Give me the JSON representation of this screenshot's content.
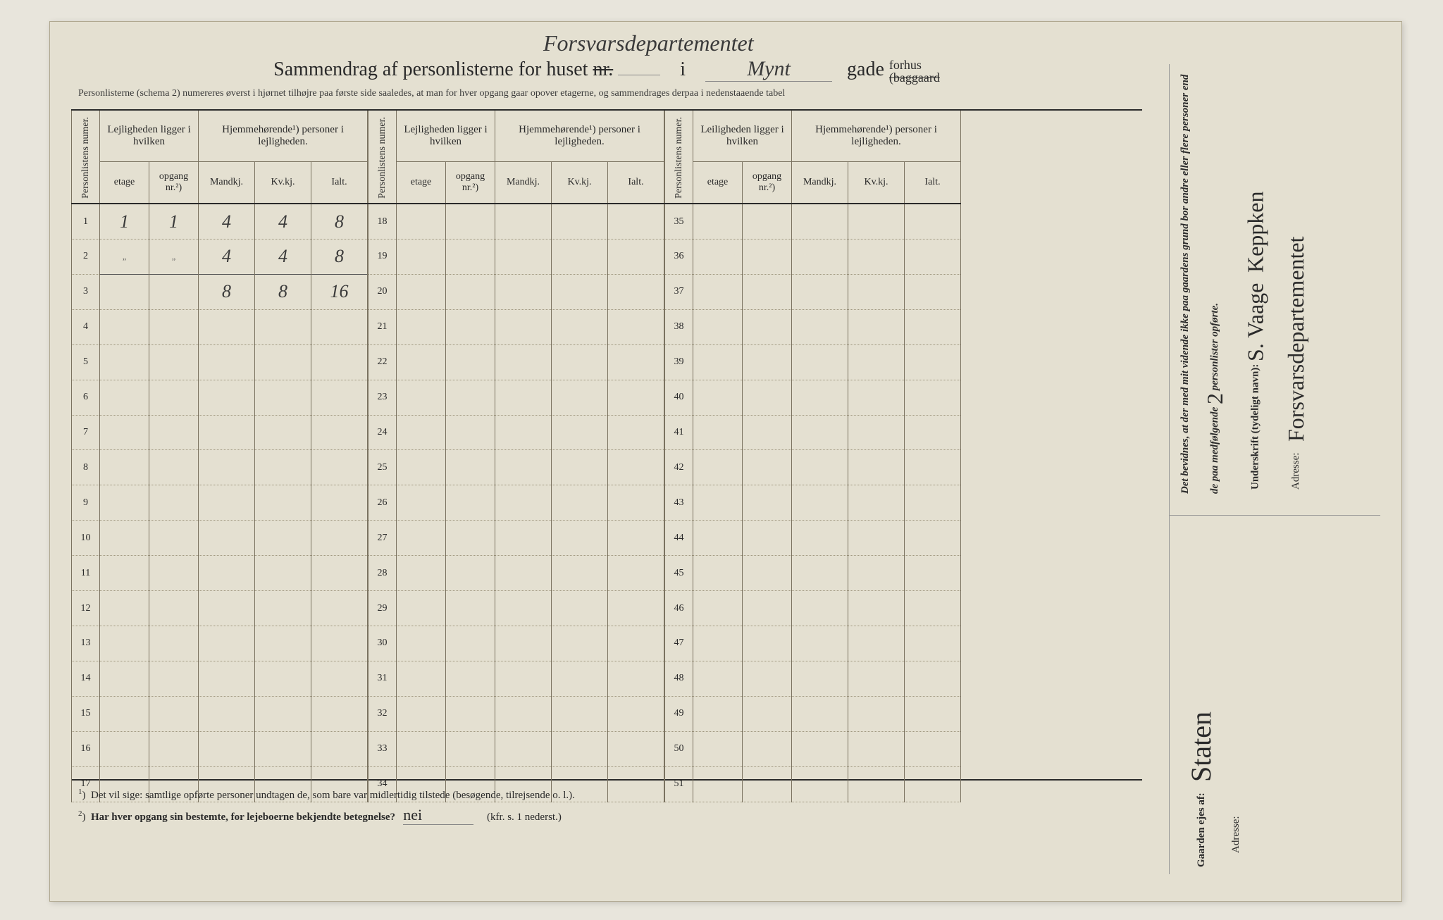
{
  "page": {
    "background_color": "#e4e0d1",
    "border_color": "#b0a890",
    "text_color": "#2a2a2a",
    "rule_color": "#7a7260",
    "dotted_color": "#a09880"
  },
  "header": {
    "title_prefix": "Sammendrag af personlisterne for huset",
    "nr_label": "nr.",
    "nr_value": "",
    "i_label": "i",
    "street_value": "Mynt",
    "gade_label": "gade",
    "forhus": "forhus",
    "baggaard": "(baggaard",
    "handwritten_above": "Forsvarsdepartementet",
    "subtitle": "Personlisterne (schema 2) numereres øverst i hjørnet tilhøjre paa første side saaledes, at man for hver opgang gaar opover etagerne, og sammendrages derpaa i nedenstaaende tabel"
  },
  "table": {
    "col_personlistens": "Personlistens numer.",
    "group_lejlighed": "Lejligheden ligger i hvilken",
    "group_leilighed": "Leiligheden ligger i hvilken",
    "group_hjemme": "Hjemmehørende¹) personer i lejligheden.",
    "col_etage": "etage",
    "col_opgang": "opgang nr.²)",
    "col_mand": "Mandkj.",
    "col_kv": "Kv.kj.",
    "col_ialt": "Ialt.",
    "row_count_per_block": 17,
    "blocks": 3,
    "rows_block1": [
      {
        "n": "1",
        "etage": "1",
        "opgang": "1",
        "m": "4",
        "k": "4",
        "i": "8"
      },
      {
        "n": "2",
        "etage": "„",
        "opgang": "„",
        "m": "4",
        "k": "4",
        "i": "8"
      },
      {
        "n": "3",
        "etage": "",
        "opgang": "",
        "m": "8",
        "k": "8",
        "i": "16",
        "sum": true
      },
      {
        "n": "4"
      },
      {
        "n": "5"
      },
      {
        "n": "6"
      },
      {
        "n": "7"
      },
      {
        "n": "8"
      },
      {
        "n": "9"
      },
      {
        "n": "10"
      },
      {
        "n": "11"
      },
      {
        "n": "12"
      },
      {
        "n": "13"
      },
      {
        "n": "14"
      },
      {
        "n": "15"
      },
      {
        "n": "16"
      },
      {
        "n": "17"
      }
    ],
    "rows_block2": [
      {
        "n": "18"
      },
      {
        "n": "19"
      },
      {
        "n": "20"
      },
      {
        "n": "21"
      },
      {
        "n": "22"
      },
      {
        "n": "23"
      },
      {
        "n": "24"
      },
      {
        "n": "25"
      },
      {
        "n": "26"
      },
      {
        "n": "27"
      },
      {
        "n": "28"
      },
      {
        "n": "29"
      },
      {
        "n": "30"
      },
      {
        "n": "31"
      },
      {
        "n": "32"
      },
      {
        "n": "33"
      },
      {
        "n": "34"
      }
    ],
    "rows_block3": [
      {
        "n": "35"
      },
      {
        "n": "36"
      },
      {
        "n": "37"
      },
      {
        "n": "38"
      },
      {
        "n": "39"
      },
      {
        "n": "40"
      },
      {
        "n": "41"
      },
      {
        "n": "42"
      },
      {
        "n": "43"
      },
      {
        "n": "44"
      },
      {
        "n": "45"
      },
      {
        "n": "46"
      },
      {
        "n": "47"
      },
      {
        "n": "48"
      },
      {
        "n": "49"
      },
      {
        "n": "50"
      },
      {
        "n": "51"
      }
    ]
  },
  "footnotes": {
    "fn1_sup": "1",
    "fn1": "Det vil sige: samtlige opførte personer undtagen de, som bare var midlertidig tilstede (besøgende, tilrejsende o. l.).",
    "fn2_sup": "2",
    "fn2": "Har hver opgang sin bestemte, for lejeboerne bekjendte betegnelse?",
    "fn2_answer": "nei",
    "fn2_suffix": "(kfr. s. 1 nederst.)"
  },
  "sidebar": {
    "attest_text": "Det bevidnes, at der med mit vidende ikke paa gaardens grund bor andre eller flere personer end de paa medfølgende",
    "attest_count": "2",
    "attest_suffix": "personlister opførte.",
    "underskrift_label": "Underskrift (tydeligt navn):",
    "underskrift_value": "S. Vaage",
    "underskrift_value2": "Keppken",
    "adresse_label": "Adresse:",
    "adresse_value": "Forsvarsdepartementet",
    "gaarden_label": "Gaarden ejes af:",
    "gaarden_value": "Staten",
    "adresse2_label": "Adresse:"
  }
}
